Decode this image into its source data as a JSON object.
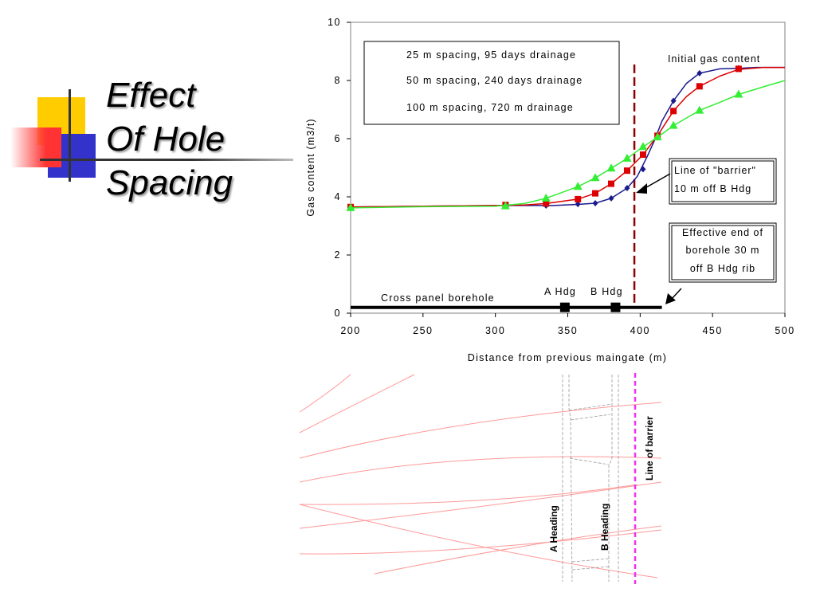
{
  "slide": {
    "title_lines": [
      "Effect",
      "Of Hole",
      "Spacing"
    ]
  },
  "colors": {
    "deco_yellow": "#FFCC00",
    "deco_blue": "#3333CC",
    "deco_red": "#FF3333",
    "series_blue": "#1a1a8c",
    "series_red": "#dd0000",
    "series_green": "#33ee33",
    "barrier_line": "#8b0000",
    "drawing_lines": "#ff9999",
    "drawing_barrier": "#ee33ee"
  },
  "chart_data": {
    "type": "line",
    "xlabel": "Distance from previous maingate (m)",
    "ylabel": "Gas content (m3/t)",
    "xlim": [
      200,
      500
    ],
    "ylim": [
      0,
      10
    ],
    "x_ticks": [
      200,
      250,
      300,
      350,
      400,
      450,
      500
    ],
    "y_ticks": [
      0,
      2,
      4,
      6,
      8,
      10
    ],
    "legend_position": "top-left",
    "series": [
      {
        "name": "25 m spacing, 95 days drainage",
        "color": "#1a1a8c",
        "marker": "diamond",
        "points": [
          [
            200,
            3.65
          ],
          [
            307,
            3.7
          ],
          [
            335,
            3.7
          ],
          [
            357,
            3.75
          ],
          [
            369,
            3.78
          ],
          [
            380,
            3.95
          ],
          [
            391,
            4.3
          ],
          [
            402,
            4.95
          ],
          [
            412,
            6.05
          ],
          [
            423,
            7.3
          ],
          [
            441,
            8.25
          ],
          [
            468,
            8.42
          ]
        ],
        "curve": [
          [
            200,
            3.65
          ],
          [
            250,
            3.68
          ],
          [
            300,
            3.7
          ],
          [
            340,
            3.7
          ],
          [
            357,
            3.74
          ],
          [
            369,
            3.78
          ],
          [
            380,
            3.95
          ],
          [
            391,
            4.3
          ],
          [
            398,
            4.7
          ],
          [
            405,
            5.4
          ],
          [
            410,
            5.95
          ],
          [
            415,
            6.6
          ],
          [
            423,
            7.3
          ],
          [
            432,
            7.9
          ],
          [
            441,
            8.25
          ],
          [
            455,
            8.4
          ],
          [
            468,
            8.42
          ],
          [
            480,
            8.45
          ],
          [
            500,
            8.45
          ]
        ]
      },
      {
        "name": "50 m spacing, 240 days drainage",
        "color": "#dd0000",
        "marker": "square",
        "points": [
          [
            200,
            3.65
          ],
          [
            307,
            3.72
          ],
          [
            335,
            3.77
          ],
          [
            357,
            3.92
          ],
          [
            369,
            4.12
          ],
          [
            380,
            4.45
          ],
          [
            391,
            4.9
          ],
          [
            402,
            5.45
          ],
          [
            412,
            6.1
          ],
          [
            423,
            6.95
          ],
          [
            441,
            7.8
          ],
          [
            468,
            8.4
          ]
        ],
        "curve": [
          [
            200,
            3.65
          ],
          [
            250,
            3.68
          ],
          [
            300,
            3.7
          ],
          [
            320,
            3.72
          ],
          [
            335,
            3.77
          ],
          [
            357,
            3.92
          ],
          [
            369,
            4.12
          ],
          [
            380,
            4.45
          ],
          [
            391,
            4.9
          ],
          [
            402,
            5.45
          ],
          [
            412,
            6.1
          ],
          [
            423,
            6.95
          ],
          [
            432,
            7.45
          ],
          [
            441,
            7.8
          ],
          [
            455,
            8.15
          ],
          [
            468,
            8.38
          ],
          [
            485,
            8.45
          ],
          [
            500,
            8.45
          ]
        ]
      },
      {
        "name": "100 m spacing, 720 m drainage",
        "color": "#33ee33",
        "marker": "triangle",
        "points": [
          [
            200,
            3.62
          ],
          [
            307,
            3.68
          ],
          [
            335,
            3.95
          ],
          [
            357,
            4.35
          ],
          [
            369,
            4.65
          ],
          [
            380,
            4.98
          ],
          [
            391,
            5.32
          ],
          [
            402,
            5.72
          ],
          [
            412,
            6.05
          ],
          [
            423,
            6.45
          ],
          [
            441,
            6.97
          ],
          [
            468,
            7.52
          ]
        ],
        "curve": [
          [
            200,
            3.62
          ],
          [
            250,
            3.66
          ],
          [
            300,
            3.68
          ],
          [
            320,
            3.77
          ],
          [
            335,
            3.95
          ],
          [
            357,
            4.35
          ],
          [
            369,
            4.65
          ],
          [
            380,
            4.98
          ],
          [
            391,
            5.32
          ],
          [
            402,
            5.72
          ],
          [
            412,
            6.05
          ],
          [
            423,
            6.45
          ],
          [
            441,
            6.97
          ],
          [
            455,
            7.25
          ],
          [
            468,
            7.52
          ],
          [
            485,
            7.78
          ],
          [
            500,
            8.0
          ]
        ]
      }
    ],
    "barrier_x": 396,
    "borehole": {
      "label": "Cross panel borehole",
      "x_range": [
        200,
        415
      ],
      "y": 0.2,
      "headings": [
        {
          "label": "A Hdg",
          "x": 348
        },
        {
          "label": "B Hdg",
          "x": 383
        }
      ]
    },
    "annotations": {
      "initial_gas": "Initial gas content",
      "barrier_lines": [
        "Line of \"barrier\"",
        "10 m off B Hdg"
      ],
      "end_lines": [
        "Effective end of",
        "borehole 30 m",
        "off B Hdg rib"
      ]
    }
  },
  "drawing": {
    "label_a": "A Heading",
    "label_b": "B Heading",
    "label_barrier": "Line of barrier"
  }
}
